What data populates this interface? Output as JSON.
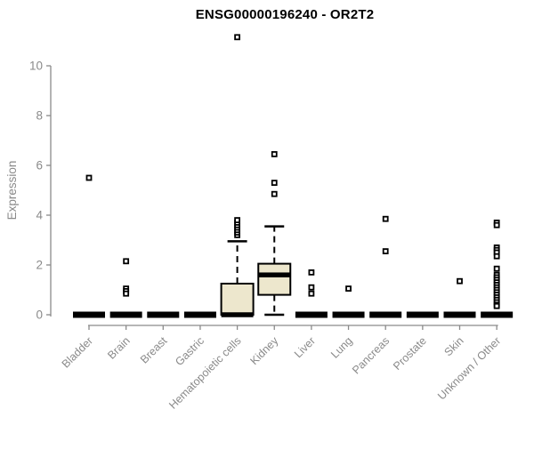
{
  "chart_data": {
    "type": "box",
    "title": "ENSG00000196240 - OR2T2",
    "ylabel": "Expression",
    "xlabel": "",
    "ylim": [
      0,
      11.2
    ],
    "yticks": [
      0,
      2,
      4,
      6,
      8,
      10
    ],
    "grid": false,
    "legend": null,
    "categories": [
      "Bladder",
      "Brain",
      "Breast",
      "Gastric",
      "Hematopoietic cells",
      "Kidney",
      "Liver",
      "Lung",
      "Pancreas",
      "Prostate",
      "Skin",
      "Unknown / Other"
    ],
    "boxes": [
      {
        "label": "Bladder",
        "q1": 0,
        "median": 0,
        "q3": 0,
        "whisker_low": 0,
        "whisker_high": 0,
        "outliers": [
          5.5
        ]
      },
      {
        "label": "Brain",
        "q1": 0,
        "median": 0,
        "q3": 0,
        "whisker_low": 0,
        "whisker_high": 0,
        "outliers": [
          2.15,
          1.05,
          0.95,
          0.85
        ]
      },
      {
        "label": "Breast",
        "q1": 0,
        "median": 0,
        "q3": 0,
        "whisker_low": 0,
        "whisker_high": 0,
        "outliers": []
      },
      {
        "label": "Gastric",
        "q1": 0,
        "median": 0,
        "q3": 0,
        "whisker_low": 0,
        "whisker_high": 0,
        "outliers": []
      },
      {
        "label": "Hematopoietic cells",
        "q1": 0,
        "median": 0,
        "q3": 1.25,
        "whisker_low": 0,
        "whisker_high": 2.95,
        "outliers": [
          3.2,
          3.3,
          3.4,
          3.5,
          3.6,
          3.7,
          3.8,
          11.15
        ]
      },
      {
        "label": "Kidney",
        "q1": 0.8,
        "median": 1.6,
        "q3": 2.05,
        "whisker_low": 0,
        "whisker_high": 3.55,
        "outliers": [
          4.85,
          5.3,
          6.45
        ]
      },
      {
        "label": "Liver",
        "q1": 0,
        "median": 0,
        "q3": 0,
        "whisker_low": 0,
        "whisker_high": 0,
        "outliers": [
          1.7,
          1.1,
          0.85
        ]
      },
      {
        "label": "Lung",
        "q1": 0,
        "median": 0,
        "q3": 0,
        "whisker_low": 0,
        "whisker_high": 0,
        "outliers": [
          1.05
        ]
      },
      {
        "label": "Pancreas",
        "q1": 0,
        "median": 0,
        "q3": 0,
        "whisker_low": 0,
        "whisker_high": 0,
        "outliers": [
          3.85,
          2.55
        ]
      },
      {
        "label": "Prostate",
        "q1": 0,
        "median": 0,
        "q3": 0,
        "whisker_low": 0,
        "whisker_high": 0,
        "outliers": []
      },
      {
        "label": "Skin",
        "q1": 0,
        "median": 0,
        "q3": 0,
        "whisker_low": 0,
        "whisker_high": 0,
        "outliers": [
          1.35
        ]
      },
      {
        "label": "Unknown / Other",
        "q1": 0,
        "median": 0,
        "q3": 0,
        "whisker_low": 0,
        "whisker_high": 0,
        "outliers": [
          3.7,
          3.6,
          2.7,
          2.6,
          2.5,
          2.35,
          1.85,
          1.6,
          1.5,
          1.4,
          1.3,
          1.2,
          1.1,
          1.0,
          0.9,
          0.8,
          0.7,
          0.6,
          0.5,
          0.4,
          0.35
        ]
      }
    ],
    "colors": {
      "box_fill": "#ede7cd",
      "box_border": "#000000",
      "flat_bar": "#000000",
      "axis": "#8a8a8a",
      "tick_text": "#8a8a8a",
      "title": "#000000",
      "outlier_fill": "#ffffff",
      "background": "#ffffff"
    }
  }
}
